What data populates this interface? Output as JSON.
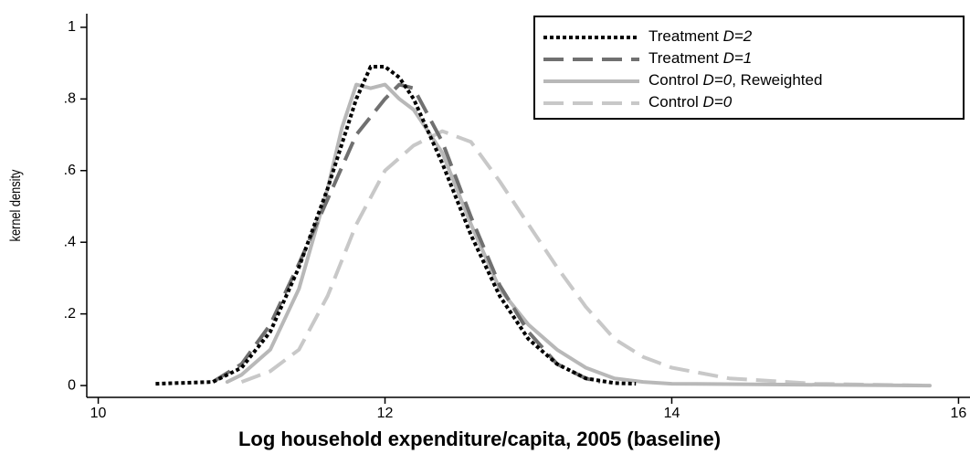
{
  "chart_data": {
    "type": "line",
    "x_label": "Log household expenditure/capita, 2005 (baseline)",
    "y_label": "kernel density",
    "xlim": [
      9.92,
      16.08
    ],
    "ylim": [
      -0.033,
      1.038
    ],
    "xticks": [
      10,
      12,
      14,
      16
    ],
    "yticks": [
      0,
      {
        "value": 0.2,
        "label": ".2"
      },
      {
        "value": 0.4,
        "label": ".4"
      },
      {
        "value": 0.6,
        "label": ".6"
      },
      {
        "value": 0.8,
        "label": ".8"
      },
      1
    ],
    "legend": "top-right",
    "series": [
      {
        "name": "Treatment D=2",
        "color": "#000000",
        "dash": "dotted",
        "x": [
          10.4,
          10.8,
          11.0,
          11.2,
          11.4,
          11.6,
          11.8,
          11.9,
          12.0,
          12.1,
          12.2,
          12.4,
          12.6,
          12.8,
          13.0,
          13.2,
          13.4,
          13.6,
          13.75
        ],
        "values": [
          0.005,
          0.01,
          0.05,
          0.15,
          0.33,
          0.55,
          0.8,
          0.89,
          0.89,
          0.86,
          0.8,
          0.62,
          0.42,
          0.25,
          0.13,
          0.06,
          0.02,
          0.007,
          0.005
        ]
      },
      {
        "name": "Treatment D=1",
        "color": "#707070",
        "dash": "dashed",
        "x": [
          10.8,
          11.0,
          11.2,
          11.4,
          11.6,
          11.8,
          12.0,
          12.1,
          12.2,
          12.4,
          12.6,
          12.8,
          13.0,
          13.2,
          13.4,
          13.5
        ],
        "values": [
          0.01,
          0.06,
          0.17,
          0.34,
          0.52,
          0.7,
          0.8,
          0.84,
          0.83,
          0.68,
          0.47,
          0.28,
          0.15,
          0.06,
          0.02,
          0.01
        ]
      },
      {
        "name": "Control D=0, Reweighted",
        "color": "#b8b8b8",
        "dash": "solid",
        "x": [
          10.9,
          11.0,
          11.2,
          11.4,
          11.6,
          11.7,
          11.8,
          11.9,
          12.0,
          12.1,
          12.2,
          12.4,
          12.6,
          12.8,
          13.0,
          13.2,
          13.4,
          13.6,
          13.8,
          14.0,
          15.8
        ],
        "values": [
          0.01,
          0.03,
          0.1,
          0.27,
          0.55,
          0.72,
          0.84,
          0.83,
          0.84,
          0.8,
          0.77,
          0.65,
          0.45,
          0.27,
          0.17,
          0.1,
          0.05,
          0.02,
          0.01,
          0.005,
          0.0
        ]
      },
      {
        "name": "Control D=0",
        "color": "#c8c8c8",
        "dash": "dashed",
        "x": [
          11.0,
          11.2,
          11.4,
          11.6,
          11.8,
          12.0,
          12.2,
          12.4,
          12.6,
          12.8,
          13.0,
          13.2,
          13.4,
          13.6,
          13.8,
          14.0,
          14.4,
          15.0,
          15.8
        ],
        "values": [
          0.01,
          0.04,
          0.1,
          0.25,
          0.45,
          0.6,
          0.67,
          0.71,
          0.68,
          0.57,
          0.45,
          0.33,
          0.22,
          0.13,
          0.08,
          0.05,
          0.02,
          0.005,
          0.0
        ]
      }
    ]
  }
}
